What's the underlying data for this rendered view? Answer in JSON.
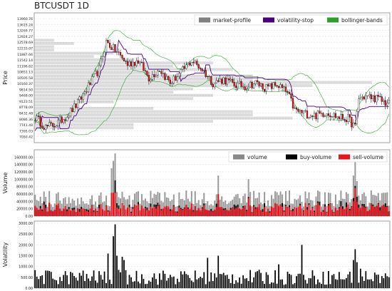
{
  "title": "BTCUSDT 1D",
  "colors": {
    "up": "#2ca02c",
    "down": "#d62728",
    "candle_up": "#ffffff",
    "candle_down": "#e8141b",
    "market_profile": "#808080",
    "volatility_stop": "#4b0082",
    "bollinger": "#2ca02c",
    "volume": "#888888",
    "buy_volume": "#000000",
    "sell_volume": "#e8141b",
    "volatility": "#000000"
  },
  "chart_data": [
    {
      "type": "candlestick",
      "ylabel": "Price",
      "ylim": [
        6700,
        14300
      ],
      "yticks": [
        7050.42,
        7395.03,
        7741.48,
        8086.36,
        8432.48,
        8778.09,
        9123.51,
        9469.0,
        9814.5,
        10160.37,
        10505.58,
        10851.13,
        11196.62,
        11542.14,
        11887.66,
        12233.07,
        12578.69,
        12924.27,
        13269.77,
        13615.24,
        13960.76
      ],
      "ytick_labels": [
        "7050.42",
        "7395.03",
        "7741.48",
        "8086.36",
        "8432.48",
        "8778.09",
        "9123.51",
        "9469.00",
        "9814.50",
        "10160.37",
        "10505.58",
        "10851.13",
        "11196.62",
        "11542.14",
        "11887.66",
        "12233.07",
        "12578.69",
        "12924.27",
        "13269.77",
        "13615.24",
        "13960.76"
      ],
      "legend": [
        "market-profile",
        "volatility-stop",
        "bollinger-bands"
      ],
      "legend_placement": "top-right",
      "grid": true,
      "price_waypoints": [
        [
          0,
          8200
        ],
        [
          6,
          7600
        ],
        [
          12,
          7800
        ],
        [
          18,
          8300
        ],
        [
          24,
          9000
        ],
        [
          30,
          10000
        ],
        [
          36,
          11000
        ],
        [
          40,
          12600
        ],
        [
          46,
          12000
        ],
        [
          52,
          11300
        ],
        [
          58,
          11500
        ],
        [
          64,
          10500
        ],
        [
          70,
          11000
        ],
        [
          76,
          10200
        ],
        [
          82,
          10800
        ],
        [
          88,
          11500
        ],
        [
          94,
          11000
        ],
        [
          100,
          10200
        ],
        [
          106,
          10400
        ],
        [
          112,
          10100
        ],
        [
          118,
          10000
        ],
        [
          124,
          10200
        ],
        [
          130,
          9900
        ],
        [
          136,
          10100
        ],
        [
          142,
          9600
        ],
        [
          146,
          8600
        ],
        [
          152,
          8400
        ],
        [
          158,
          8300
        ],
        [
          164,
          8500
        ],
        [
          170,
          8200
        ],
        [
          176,
          8100
        ],
        [
          180,
          7600
        ],
        [
          182,
          9300
        ],
        [
          186,
          9400
        ],
        [
          192,
          9300
        ],
        [
          198,
          9000
        ]
      ]
    },
    {
      "type": "bar",
      "ylabel": "Volume",
      "ylim": [
        0,
        180000
      ],
      "yticks": [
        0,
        20000,
        40000,
        60000,
        80000,
        100000,
        120000,
        140000,
        160000
      ],
      "ytick_labels": [
        "0.00",
        "20000.00",
        "40000.00",
        "60000.00",
        "80000.00",
        "100000.00",
        "120000.00",
        "140000.00",
        "160000.00"
      ],
      "legend": [
        "volume",
        "buy-volume",
        "sell-volume"
      ],
      "legend_placement": "top-right",
      "grid": true,
      "volume_peaks": [
        [
          45,
          170000
        ],
        [
          44,
          150000
        ],
        [
          43,
          130000
        ],
        [
          103,
          110000
        ],
        [
          120,
          100000
        ],
        [
          180,
          160000
        ],
        [
          179,
          110000
        ],
        [
          181,
          95000
        ]
      ]
    },
    {
      "type": "bar",
      "ylabel": "Volatility",
      "ylim": [
        0,
        3100
      ],
      "yticks": [
        0,
        500,
        1000,
        1500,
        2000,
        2500,
        3000
      ],
      "ytick_labels": [
        "0.00",
        "500.00",
        "1000.00",
        "1500.00",
        "2000.00",
        "2500.00",
        "3000.00"
      ],
      "grid": true,
      "volatility_peaks": [
        [
          45,
          2950
        ],
        [
          44,
          2400
        ],
        [
          46,
          1500
        ],
        [
          41,
          1600
        ],
        [
          49,
          1450
        ],
        [
          50,
          1300
        ],
        [
          103,
          1500
        ],
        [
          97,
          1400
        ],
        [
          137,
          1100
        ],
        [
          150,
          2000
        ],
        [
          180,
          1800
        ],
        [
          179,
          1300
        ],
        [
          181,
          1200
        ],
        [
          183,
          900
        ],
        [
          198,
          550
        ]
      ]
    }
  ],
  "bars_count": 200
}
